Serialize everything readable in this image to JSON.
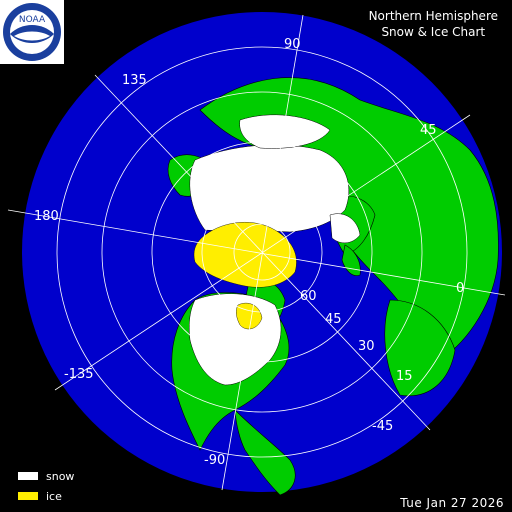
{
  "title": {
    "line1": "Northern Hemisphere",
    "line2": "Snow & Ice Chart"
  },
  "date": "Tue Jan 27   2026",
  "logo_text": "NOAA",
  "legend": [
    {
      "label": "snow",
      "color": "#ffffff"
    },
    {
      "label": "ice",
      "color": "#ffee00"
    }
  ],
  "colors": {
    "ocean": "#0000cc",
    "land": "#00cc00",
    "snow": "#ffffff",
    "ice": "#ffee00",
    "background": "#000000",
    "grid": "#ffffff"
  },
  "longitude_labels": [
    "90",
    "135",
    "45",
    "180",
    "0",
    "-135",
    "-45",
    "-90"
  ],
  "latitude_labels": [
    "60",
    "45",
    "30",
    "15"
  ]
}
